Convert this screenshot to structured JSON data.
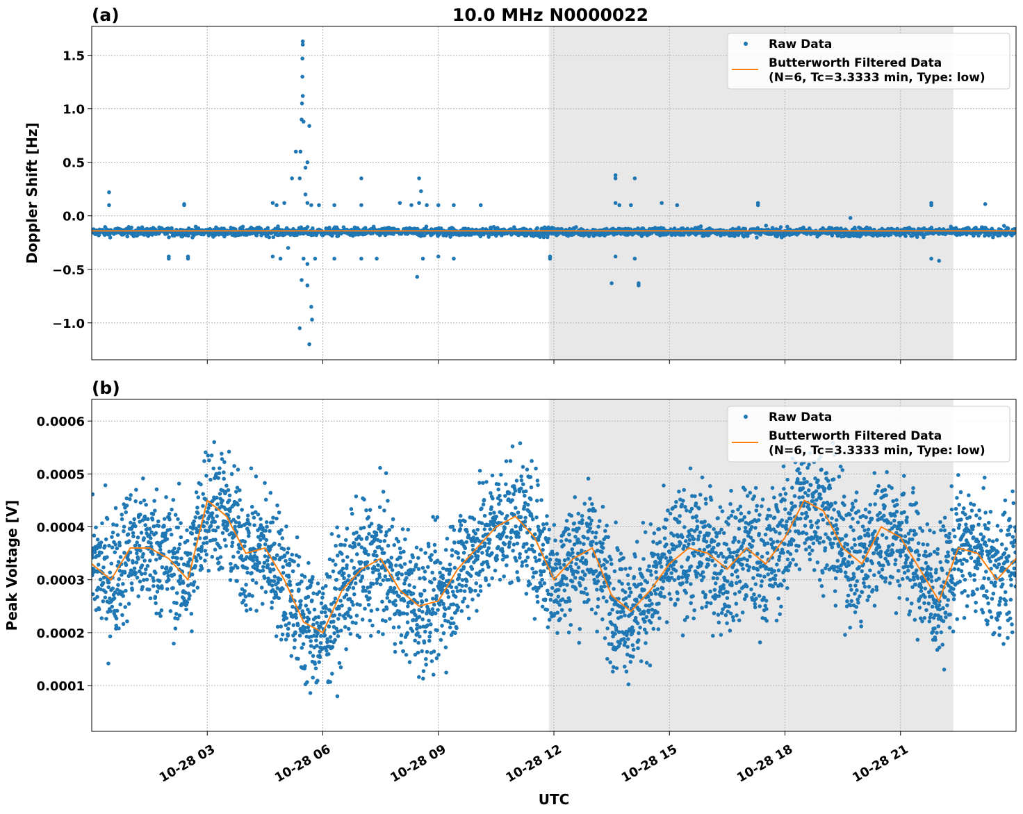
{
  "colors": {
    "raw": "#1f77b4",
    "filtered": "#ff7f0e",
    "shade": "#e8e8e8"
  },
  "chart_data": [
    {
      "type": "scatter",
      "panel_label": "(a)",
      "title": "10.0 MHz N0000022",
      "xlabel": "",
      "ylabel": "Doppler Shift [Hz]",
      "x_unit": "hours UTC since 10-28 00",
      "xlim": [
        0,
        24
      ],
      "ylim": [
        -1.345,
        1.77
      ],
      "yticks": [
        -1.0,
        -0.5,
        0.0,
        0.5,
        1.0,
        1.5
      ],
      "ytick_labels": [
        "−1.0",
        "−0.5",
        "0.0",
        "0.5",
        "1.0",
        "1.5"
      ],
      "grid": true,
      "shaded_interval_hours": [
        11.87,
        22.37
      ],
      "legend": {
        "placement": "top-right",
        "entries": [
          "Raw Data",
          "Butterworth Filtered Data",
          "(N=6, Tc=3.3333 min, Type: low)"
        ]
      },
      "raw_baseline": -0.15,
      "raw_spread": 0.02,
      "filtered_baseline": -0.14,
      "outliers": [
        [
          0.45,
          0.22
        ],
        [
          0.45,
          0.1
        ],
        [
          2.0,
          -0.38
        ],
        [
          2.0,
          -0.4
        ],
        [
          2.4,
          0.11
        ],
        [
          2.4,
          0.1
        ],
        [
          2.5,
          -0.38
        ],
        [
          2.5,
          -0.4
        ],
        [
          4.7,
          0.12
        ],
        [
          4.7,
          -0.38
        ],
        [
          4.8,
          0.1
        ],
        [
          4.9,
          -0.4
        ],
        [
          5.0,
          0.12
        ],
        [
          5.1,
          -0.3
        ],
        [
          5.2,
          0.35
        ],
        [
          5.3,
          0.6
        ],
        [
          5.48,
          1.63
        ],
        [
          5.48,
          1.6
        ],
        [
          5.47,
          1.47
        ],
        [
          5.47,
          1.3
        ],
        [
          5.48,
          1.12
        ],
        [
          5.46,
          1.05
        ],
        [
          5.45,
          0.9
        ],
        [
          5.5,
          0.88
        ],
        [
          5.65,
          0.84
        ],
        [
          5.42,
          0.6
        ],
        [
          5.6,
          0.5
        ],
        [
          5.55,
          0.45
        ],
        [
          5.4,
          0.35
        ],
        [
          5.55,
          0.2
        ],
        [
          5.6,
          0.12
        ],
        [
          5.7,
          0.1
        ],
        [
          5.5,
          -0.4
        ],
        [
          5.6,
          -0.45
        ],
        [
          5.45,
          -0.6
        ],
        [
          5.6,
          -0.65
        ],
        [
          5.7,
          -0.85
        ],
        [
          5.72,
          -0.97
        ],
        [
          5.4,
          -1.05
        ],
        [
          5.65,
          -1.2
        ],
        [
          5.8,
          -0.4
        ],
        [
          5.9,
          0.1
        ],
        [
          6.3,
          0.1
        ],
        [
          6.3,
          -0.4
        ],
        [
          7.0,
          0.35
        ],
        [
          7.0,
          0.1
        ],
        [
          7.0,
          -0.4
        ],
        [
          7.4,
          -0.4
        ],
        [
          8.0,
          0.12
        ],
        [
          8.3,
          0.1
        ],
        [
          8.5,
          0.35
        ],
        [
          8.55,
          0.23
        ],
        [
          8.5,
          0.12
        ],
        [
          8.6,
          -0.4
        ],
        [
          8.45,
          -0.57
        ],
        [
          8.7,
          0.1
        ],
        [
          9.0,
          0.1
        ],
        [
          9.0,
          -0.38
        ],
        [
          9.4,
          0.1
        ],
        [
          9.4,
          -0.4
        ],
        [
          10.1,
          0.1
        ],
        [
          11.9,
          -0.38
        ],
        [
          11.9,
          -0.4
        ],
        [
          13.6,
          0.38
        ],
        [
          13.6,
          0.35
        ],
        [
          13.6,
          0.12
        ],
        [
          13.7,
          0.1
        ],
        [
          13.6,
          -0.38
        ],
        [
          13.5,
          -0.63
        ],
        [
          14.1,
          0.35
        ],
        [
          14.0,
          0.1
        ],
        [
          14.1,
          -0.4
        ],
        [
          14.2,
          -0.63
        ],
        [
          14.2,
          -0.65
        ],
        [
          14.8,
          0.12
        ],
        [
          15.2,
          0.1
        ],
        [
          17.3,
          0.12
        ],
        [
          17.3,
          0.1
        ],
        [
          19.7,
          -0.02
        ],
        [
          21.8,
          0.12
        ],
        [
          21.8,
          0.1
        ],
        [
          21.8,
          -0.4
        ],
        [
          22.0,
          -0.42
        ],
        [
          23.2,
          0.11
        ]
      ]
    },
    {
      "type": "scatter",
      "panel_label": "(b)",
      "xlabel": "UTC",
      "ylabel": "Peak Voltage [V]",
      "xlim": [
        0,
        24
      ],
      "ylim": [
        1.34e-05,
        0.000641
      ],
      "yticks": [
        0.0001,
        0.0002,
        0.0003,
        0.0004,
        0.0005,
        0.0006
      ],
      "ytick_labels": [
        "0.0001",
        "0.0002",
        "0.0003",
        "0.0004",
        "0.0005",
        "0.0006"
      ],
      "xticks_hours": [
        3,
        6,
        9,
        12,
        15,
        18,
        21
      ],
      "xtick_labels": [
        "10-28 03",
        "10-28 06",
        "10-28 09",
        "10-28 12",
        "10-28 15",
        "10-28 18",
        "10-28 21"
      ],
      "grid": true,
      "shaded_interval_hours": [
        11.87,
        22.37
      ],
      "legend": {
        "placement": "top-right",
        "entries": [
          "Raw Data",
          "Butterworth Filtered Data",
          "(N=6, Tc=3.3333 min, Type: low)"
        ]
      },
      "raw_spread": 6e-05,
      "filtered_step_hours": 0.5,
      "filtered": [
        0.00033,
        0.0003,
        0.00036,
        0.00036,
        0.00034,
        0.0003,
        0.00045,
        0.00042,
        0.00035,
        0.00036,
        0.0003,
        0.00022,
        0.0002,
        0.00028,
        0.00032,
        0.00034,
        0.00028,
        0.00025,
        0.00026,
        0.00032,
        0.00036,
        0.0004,
        0.00042,
        0.00038,
        0.0003,
        0.00034,
        0.00036,
        0.00027,
        0.00024,
        0.00028,
        0.00033,
        0.00036,
        0.00035,
        0.00032,
        0.00036,
        0.00033,
        0.00038,
        0.00045,
        0.00043,
        0.00036,
        0.00033,
        0.0004,
        0.00038,
        0.00032,
        0.00026,
        0.00036,
        0.00035,
        0.0003,
        0.00034
      ]
    }
  ]
}
